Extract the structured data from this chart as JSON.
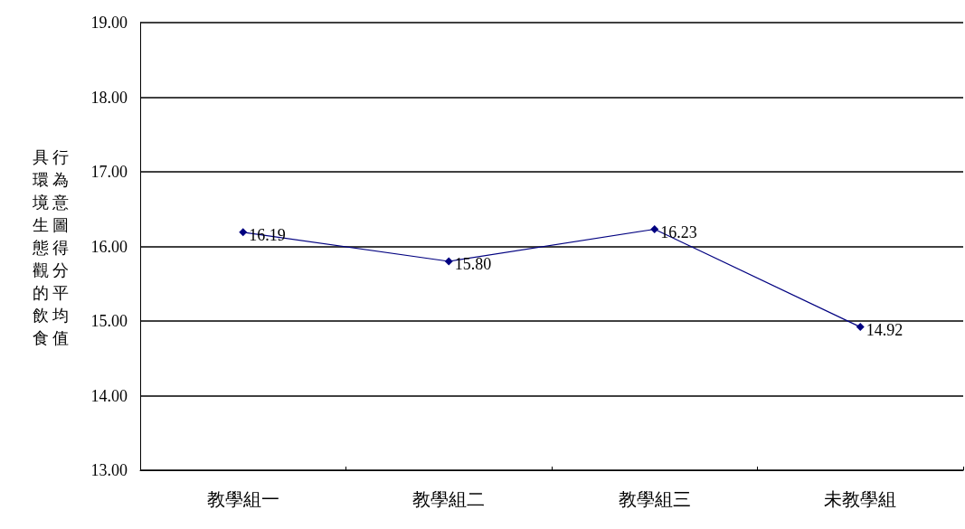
{
  "chart_data": {
    "type": "line",
    "ylabel": "具環境生態觀的飲食行為意圖得分平均值",
    "categories": [
      "教學組一",
      "教學組二",
      "教學組三",
      "未教學組"
    ],
    "series": [
      {
        "color": "#000080",
        "values": [
          16.19,
          15.8,
          16.23,
          14.92
        ],
        "value_labels": [
          "16.19",
          "15.80",
          "16.23",
          "14.92"
        ]
      }
    ],
    "ylim": [
      13,
      19
    ],
    "yticks": [
      {
        "value": 13,
        "label": "13.00"
      },
      {
        "value": 14,
        "label": "14.00"
      },
      {
        "value": 15,
        "label": "15.00"
      },
      {
        "value": 16,
        "label": "16.00"
      },
      {
        "value": 17,
        "label": "17.00"
      },
      {
        "value": 18,
        "label": "18.00"
      },
      {
        "value": 19,
        "label": "19.00"
      }
    ],
    "grid": "y",
    "marker": "diamond",
    "line_style": "solid"
  }
}
